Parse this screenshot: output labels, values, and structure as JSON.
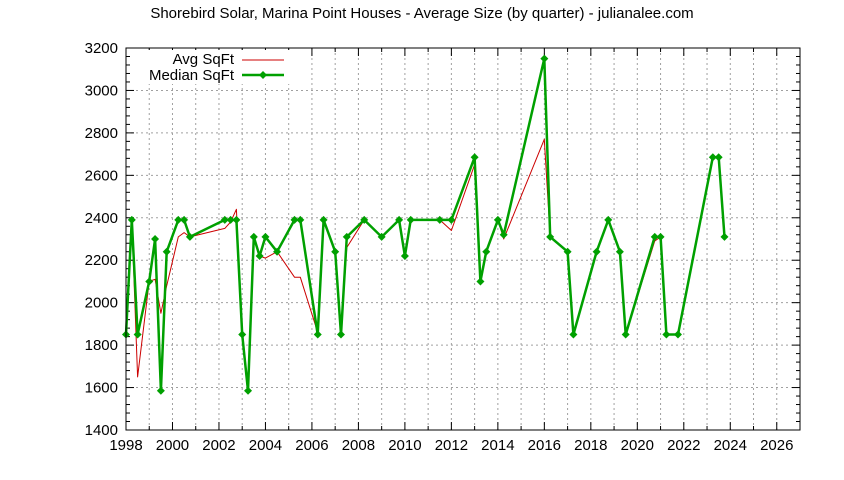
{
  "chart_data": {
    "type": "line",
    "title": "Shorebird Solar, Marina Point Houses - Average Size (by quarter) - julianalee.com",
    "xlabel": "",
    "ylabel": "",
    "xlim": [
      1998,
      2027
    ],
    "ylim": [
      1400,
      3200
    ],
    "grid": true,
    "legend_position": "top-left",
    "x_ticks": [
      "1998",
      "2000",
      "2002",
      "2004",
      "2006",
      "2008",
      "2010",
      "2012",
      "2014",
      "2016",
      "2018",
      "2020",
      "2022",
      "2024",
      "2026"
    ],
    "y_ticks": [
      "1400",
      "1600",
      "1800",
      "2000",
      "2200",
      "2400",
      "2600",
      "2800",
      "3000",
      "3200"
    ],
    "series": [
      {
        "name": "Avg SqFt",
        "color": "#cc0000",
        "marker": "none",
        "points": [
          [
            1998.0,
            1850
          ],
          [
            1998.25,
            2390
          ],
          [
            1998.5,
            1650
          ],
          [
            1999.0,
            2100
          ],
          [
            1999.25,
            2110
          ],
          [
            1999.5,
            1950
          ],
          [
            1999.75,
            2080
          ],
          [
            2000.25,
            2310
          ],
          [
            2000.5,
            2330
          ],
          [
            2000.75,
            2310
          ],
          [
            2002.25,
            2350
          ],
          [
            2002.5,
            2380
          ],
          [
            2002.75,
            2440
          ],
          [
            2003.0,
            1850
          ],
          [
            2003.25,
            1585
          ],
          [
            2003.5,
            2310
          ],
          [
            2003.75,
            2220
          ],
          [
            2004.0,
            2210
          ],
          [
            2004.5,
            2240
          ],
          [
            2005.25,
            2120
          ],
          [
            2005.5,
            2120
          ],
          [
            2006.25,
            1860
          ],
          [
            2006.5,
            2390
          ],
          [
            2007.0,
            2240
          ],
          [
            2007.25,
            1850
          ],
          [
            2007.5,
            2260
          ],
          [
            2008.25,
            2390
          ],
          [
            2009.0,
            2310
          ],
          [
            2009.75,
            2390
          ],
          [
            2010.0,
            2220
          ],
          [
            2010.25,
            2390
          ],
          [
            2011.5,
            2390
          ],
          [
            2012.0,
            2340
          ],
          [
            2013.0,
            2650
          ],
          [
            2013.25,
            2100
          ],
          [
            2013.5,
            2240
          ],
          [
            2014.0,
            2390
          ],
          [
            2014.25,
            2300
          ],
          [
            2016.0,
            2770
          ],
          [
            2016.25,
            2310
          ],
          [
            2017.0,
            2240
          ],
          [
            2017.25,
            1850
          ],
          [
            2018.25,
            2240
          ],
          [
            2018.75,
            2390
          ],
          [
            2019.25,
            2240
          ],
          [
            2019.5,
            1850
          ],
          [
            2020.75,
            2290
          ],
          [
            2021.0,
            2310
          ],
          [
            2021.25,
            1850
          ],
          [
            2021.75,
            1850
          ],
          [
            2023.25,
            2685
          ],
          [
            2023.5,
            2685
          ],
          [
            2023.75,
            2310
          ]
        ]
      },
      {
        "name": "Median SqFt",
        "color": "#00a000",
        "marker": "diamond",
        "points": [
          [
            1998.0,
            1850
          ],
          [
            1998.25,
            2390
          ],
          [
            1998.5,
            1850
          ],
          [
            1999.0,
            2100
          ],
          [
            1999.25,
            2300
          ],
          [
            1999.5,
            1585
          ],
          [
            1999.75,
            2240
          ],
          [
            2000.25,
            2390
          ],
          [
            2000.5,
            2390
          ],
          [
            2000.75,
            2310
          ],
          [
            2002.25,
            2390
          ],
          [
            2002.5,
            2390
          ],
          [
            2002.75,
            2390
          ],
          [
            2003.0,
            1850
          ],
          [
            2003.25,
            1585
          ],
          [
            2003.5,
            2310
          ],
          [
            2003.75,
            2220
          ],
          [
            2004.0,
            2310
          ],
          [
            2004.5,
            2240
          ],
          [
            2005.25,
            2390
          ],
          [
            2005.5,
            2390
          ],
          [
            2006.25,
            1850
          ],
          [
            2006.5,
            2390
          ],
          [
            2007.0,
            2240
          ],
          [
            2007.25,
            1850
          ],
          [
            2007.5,
            2310
          ],
          [
            2008.25,
            2390
          ],
          [
            2009.0,
            2310
          ],
          [
            2009.75,
            2390
          ],
          [
            2010.0,
            2220
          ],
          [
            2010.25,
            2390
          ],
          [
            2011.5,
            2390
          ],
          [
            2012.0,
            2390
          ],
          [
            2013.0,
            2685
          ],
          [
            2013.25,
            2100
          ],
          [
            2013.5,
            2240
          ],
          [
            2014.0,
            2390
          ],
          [
            2014.25,
            2320
          ],
          [
            2016.0,
            3150
          ],
          [
            2016.25,
            2310
          ],
          [
            2017.0,
            2240
          ],
          [
            2017.25,
            1850
          ],
          [
            2018.25,
            2240
          ],
          [
            2018.75,
            2390
          ],
          [
            2019.25,
            2240
          ],
          [
            2019.5,
            1850
          ],
          [
            2020.75,
            2310
          ],
          [
            2021.0,
            2310
          ],
          [
            2021.25,
            1850
          ],
          [
            2021.75,
            1850
          ],
          [
            2023.25,
            2685
          ],
          [
            2023.5,
            2685
          ],
          [
            2023.75,
            2310
          ]
        ]
      }
    ]
  },
  "colors": {
    "avg_line": "#cc0000",
    "median_line": "#00a000",
    "grid": "#a0a0a0",
    "axis": "#000000"
  }
}
